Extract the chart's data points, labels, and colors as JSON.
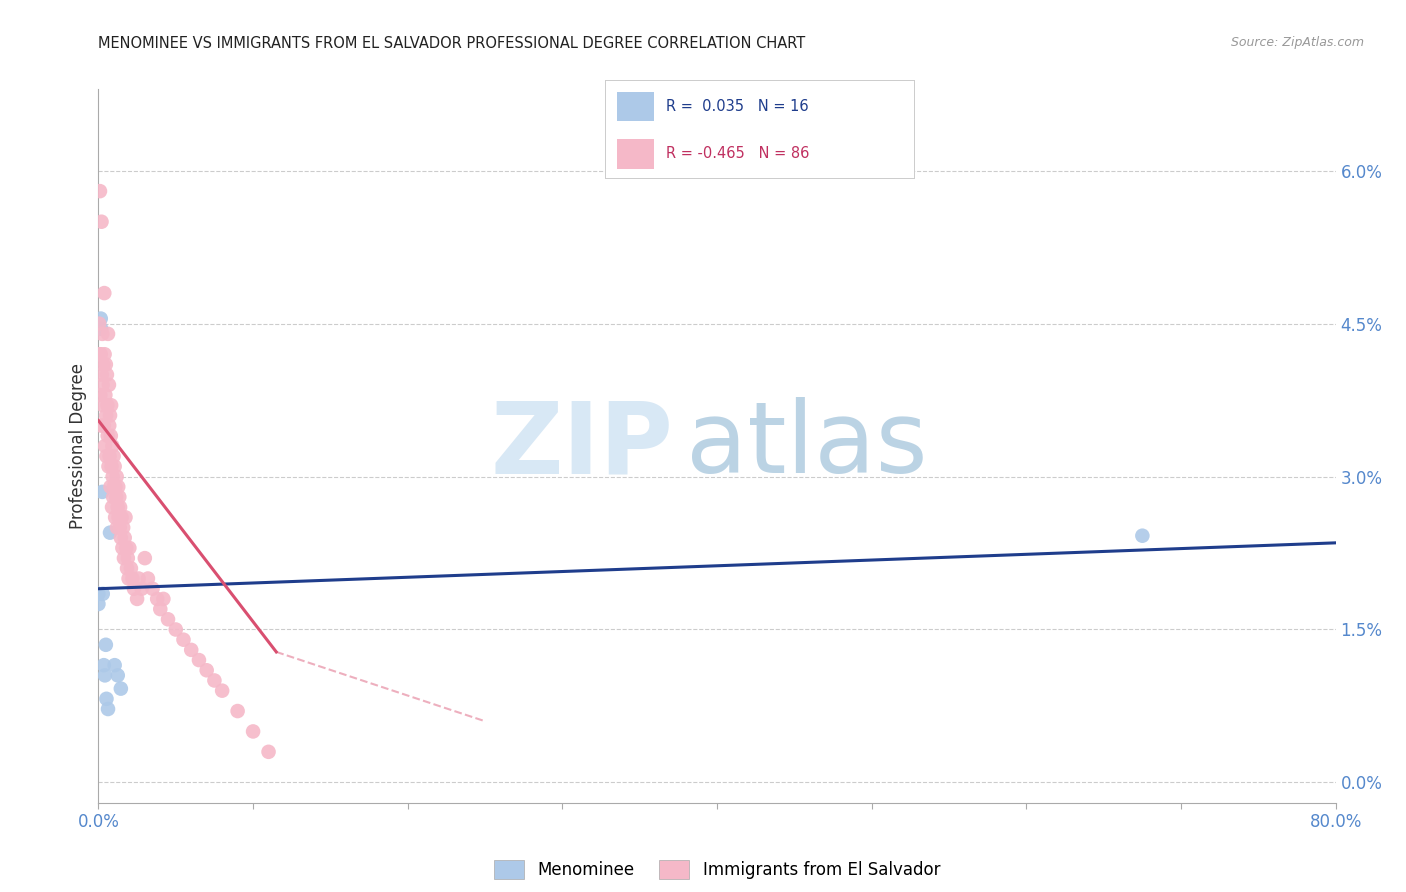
{
  "title": "MENOMINEE VS IMMIGRANTS FROM EL SALVADOR PROFESSIONAL DEGREE CORRELATION CHART",
  "source": "Source: ZipAtlas.com",
  "ylabel": "Professional Degree",
  "right_ytick_vals": [
    0.0,
    1.5,
    3.0,
    4.5,
    6.0
  ],
  "xlim": [
    0.0,
    80.0
  ],
  "ylim": [
    -0.2,
    6.8
  ],
  "blue_color": "#adc9e8",
  "pink_color": "#f5b8c8",
  "blue_line_color": "#1f3d8c",
  "pink_line_color": "#d94f70",
  "menominee_x": [
    0.0,
    0.0,
    0.15,
    0.18,
    0.25,
    0.28,
    0.35,
    0.42,
    0.48,
    0.52,
    0.62,
    0.75,
    1.05,
    1.25,
    1.45,
    67.5
  ],
  "menominee_y": [
    1.85,
    1.75,
    4.55,
    4.45,
    2.85,
    1.85,
    1.15,
    1.05,
    1.35,
    0.82,
    0.72,
    2.45,
    1.15,
    1.05,
    0.92,
    2.42
  ],
  "salvador_x": [
    0.05,
    0.08,
    0.1,
    0.12,
    0.15,
    0.18,
    0.2,
    0.22,
    0.25,
    0.27,
    0.3,
    0.32,
    0.35,
    0.38,
    0.4,
    0.42,
    0.45,
    0.48,
    0.5,
    0.52,
    0.55,
    0.58,
    0.6,
    0.62,
    0.65,
    0.68,
    0.7,
    0.72,
    0.75,
    0.78,
    0.8,
    0.82,
    0.85,
    0.88,
    0.9,
    0.92,
    0.95,
    0.98,
    1.0,
    1.05,
    1.08,
    1.1,
    1.15,
    1.18,
    1.2,
    1.25,
    1.28,
    1.3,
    1.35,
    1.38,
    1.4,
    1.45,
    1.5,
    1.55,
    1.6,
    1.65,
    1.7,
    1.75,
    1.8,
    1.85,
    1.9,
    1.95,
    2.0,
    2.1,
    2.2,
    2.3,
    2.5,
    2.6,
    2.8,
    3.0,
    3.2,
    3.5,
    3.8,
    4.0,
    4.2,
    4.5,
    5.0,
    5.5,
    6.0,
    6.5,
    7.0,
    7.5,
    8.0,
    9.0,
    10.0,
    11.0
  ],
  "salvador_y": [
    4.5,
    4.2,
    5.8,
    3.8,
    4.2,
    3.5,
    5.5,
    4.0,
    4.4,
    3.9,
    3.7,
    4.1,
    3.5,
    4.8,
    4.2,
    3.3,
    3.8,
    4.1,
    3.6,
    3.2,
    4.0,
    3.7,
    3.4,
    4.4,
    3.1,
    3.9,
    3.5,
    3.2,
    3.6,
    2.9,
    3.4,
    3.7,
    3.1,
    2.7,
    3.3,
    3.0,
    2.8,
    3.2,
    2.9,
    3.1,
    2.6,
    2.9,
    2.8,
    3.0,
    2.5,
    2.7,
    2.9,
    2.6,
    2.8,
    2.5,
    2.7,
    2.4,
    2.6,
    2.3,
    2.5,
    2.2,
    2.4,
    2.6,
    2.3,
    2.1,
    2.2,
    2.0,
    2.3,
    2.1,
    2.0,
    1.9,
    1.8,
    2.0,
    1.9,
    2.2,
    2.0,
    1.9,
    1.8,
    1.7,
    1.8,
    1.6,
    1.5,
    1.4,
    1.3,
    1.2,
    1.1,
    1.0,
    0.9,
    0.7,
    0.5,
    0.3
  ],
  "blue_trend_x_start": 0.0,
  "blue_trend_x_end": 80.0,
  "blue_trend_y_start": 1.9,
  "blue_trend_y_end": 2.35,
  "pink_trend_x_start": 0.0,
  "pink_trend_x_end": 11.5,
  "pink_trend_y_start": 3.55,
  "pink_trend_y_end": 1.28,
  "pink_dash_x_start": 11.5,
  "pink_dash_x_end": 25.0,
  "pink_dash_y_start": 1.28,
  "pink_dash_y_end": 0.6
}
